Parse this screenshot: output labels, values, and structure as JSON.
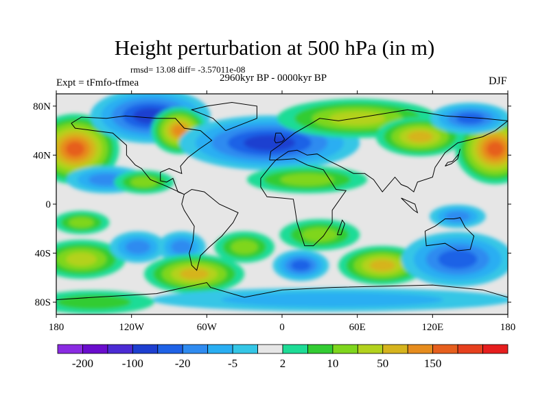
{
  "title": "Height perturbation at 500 hPa (in m)",
  "stats": "rmsd= 13.08 diff= -3.57011e-08",
  "period": "2960kyr BP - 0000kyr BP",
  "experiment": "Expt = tFmfo-tfmea",
  "season": "DJF",
  "map": {
    "lon_range": [
      -180,
      180
    ],
    "lat_range": [
      -90,
      90
    ],
    "lon_ticks": [
      {
        "value": -180,
        "label": "180"
      },
      {
        "value": -120,
        "label": "120W"
      },
      {
        "value": -60,
        "label": "60W"
      },
      {
        "value": 0,
        "label": "0"
      },
      {
        "value": 60,
        "label": "60E"
      },
      {
        "value": 120,
        "label": "120E"
      },
      {
        "value": 180,
        "label": "180"
      }
    ],
    "lat_ticks": [
      {
        "value": 80,
        "label": "80N"
      },
      {
        "value": 40,
        "label": "40N"
      },
      {
        "value": 0,
        "label": "0"
      },
      {
        "value": -40,
        "label": "40S"
      },
      {
        "value": -80,
        "label": "80S"
      }
    ],
    "background_color": "#e6e6e6",
    "coastline_color": "#000000",
    "anomalies": [
      {
        "lon": -165,
        "lat": 45,
        "sx": 22,
        "sy": 18,
        "level": 7
      },
      {
        "lon": 170,
        "lat": 45,
        "sx": 20,
        "sy": 18,
        "level": 7
      },
      {
        "lon": -105,
        "lat": 72,
        "sx": 30,
        "sy": 14,
        "level": -5
      },
      {
        "lon": -82,
        "lat": 60,
        "sx": 14,
        "sy": 12,
        "level": 6
      },
      {
        "lon": -10,
        "lat": 50,
        "sx": 45,
        "sy": 14,
        "level": -5
      },
      {
        "lon": 60,
        "lat": 70,
        "sx": 40,
        "sy": 10,
        "level": 4
      },
      {
        "lon": 110,
        "lat": 55,
        "sx": 22,
        "sy": 10,
        "level": 5
      },
      {
        "lon": 150,
        "lat": 70,
        "sx": 20,
        "sy": 8,
        "level": -4
      },
      {
        "lon": 20,
        "lat": 20,
        "sx": 30,
        "sy": 7,
        "level": 3
      },
      {
        "lon": -140,
        "lat": 20,
        "sx": 20,
        "sy": 7,
        "level": -3
      },
      {
        "lon": -110,
        "lat": 18,
        "sx": 15,
        "sy": 6,
        "level": 3
      },
      {
        "lon": -160,
        "lat": -15,
        "sx": 14,
        "sy": 6,
        "level": 3
      },
      {
        "lon": 140,
        "lat": -10,
        "sx": 14,
        "sy": 6,
        "level": -3
      },
      {
        "lon": 30,
        "lat": -25,
        "sx": 20,
        "sy": 8,
        "level": 3
      },
      {
        "lon": -160,
        "lat": -45,
        "sx": 22,
        "sy": 10,
        "level": 4
      },
      {
        "lon": -115,
        "lat": -35,
        "sx": 14,
        "sy": 8,
        "level": -3
      },
      {
        "lon": -80,
        "lat": -35,
        "sx": 12,
        "sy": 8,
        "level": -3
      },
      {
        "lon": -30,
        "lat": -35,
        "sx": 15,
        "sy": 8,
        "level": 3
      },
      {
        "lon": -70,
        "lat": -57,
        "sx": 25,
        "sy": 10,
        "level": 5
      },
      {
        "lon": 15,
        "lat": -50,
        "sx": 14,
        "sy": 8,
        "level": -4
      },
      {
        "lon": 80,
        "lat": -50,
        "sx": 22,
        "sy": 10,
        "level": 5
      },
      {
        "lon": 140,
        "lat": -45,
        "sx": 28,
        "sy": 14,
        "level": -4
      },
      {
        "lon": 40,
        "lat": -78,
        "sx": 90,
        "sy": 6,
        "level": -2
      },
      {
        "lon": -150,
        "lat": -80,
        "sx": 30,
        "sy": 6,
        "level": 2
      }
    ]
  },
  "colorbar": {
    "colors": [
      "#8a2be2",
      "#6a0dcd",
      "#4b2bd4",
      "#1e3fd0",
      "#1f62e6",
      "#2f8bf0",
      "#29aef2",
      "#34c6e6",
      "#e6e6e6",
      "#1edc96",
      "#33cc33",
      "#7fd61e",
      "#b3d21e",
      "#d6b41e",
      "#e68c1e",
      "#e65f1e",
      "#e6401e",
      "#e61e1e"
    ],
    "labels": [
      {
        "text": "-200",
        "boundary": 1
      },
      {
        "text": "-100",
        "boundary": 3
      },
      {
        "text": "-20",
        "boundary": 5
      },
      {
        "text": "-5",
        "boundary": 7
      },
      {
        "text": "2",
        "boundary": 9
      },
      {
        "text": "10",
        "boundary": 11
      },
      {
        "text": "50",
        "boundary": 13
      },
      {
        "text": "150",
        "boundary": 15
      }
    ]
  }
}
